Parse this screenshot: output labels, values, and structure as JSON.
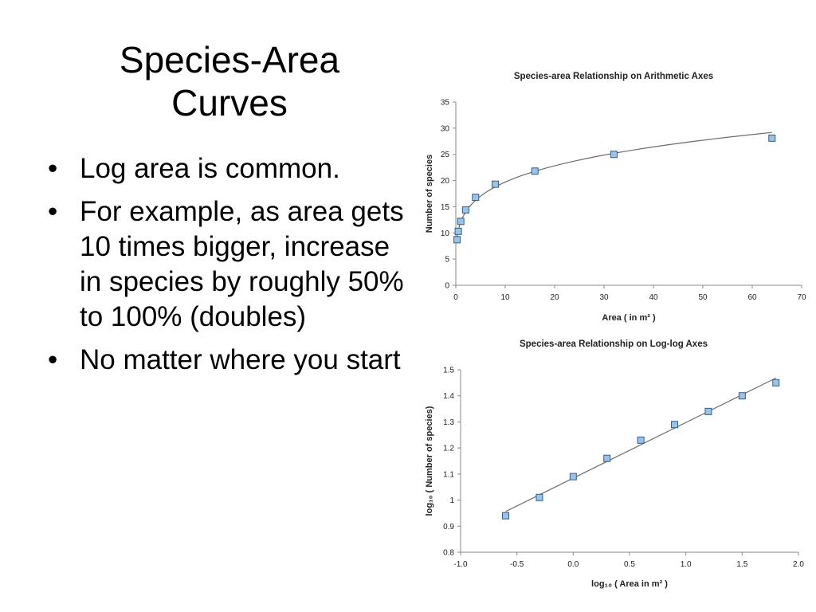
{
  "slide": {
    "title_line1": "Species-Area",
    "title_line2": "Curves",
    "bullets": [
      "Log area is common.",
      "For example, as area gets 10 times bigger, increase in species by roughly 50% to 100% (doubles)",
      "No matter where you start"
    ]
  },
  "chart_data": [
    {
      "type": "scatter",
      "title": "Species-area Relationship on Arithmetic Axes",
      "xlabel": "Area ( in m² )",
      "ylabel": "Number of species",
      "xlim": [
        0,
        70
      ],
      "ylim": [
        0,
        35
      ],
      "xticks": [
        0,
        10,
        20,
        30,
        40,
        50,
        60,
        70
      ],
      "yticks": [
        0,
        5,
        10,
        15,
        20,
        25,
        30,
        35
      ],
      "xtick_labels": [
        "0",
        "10",
        "20",
        "30",
        "40",
        "50",
        "60",
        "70"
      ],
      "ytick_labels": [
        "0",
        "5",
        "10",
        "15",
        "20",
        "25",
        "30",
        "35"
      ],
      "grid": false,
      "fit_line": "power curve",
      "points": [
        {
          "x": 0.25,
          "y": 8.7
        },
        {
          "x": 0.5,
          "y": 10.3
        },
        {
          "x": 1,
          "y": 12.2
        },
        {
          "x": 2,
          "y": 14.4
        },
        {
          "x": 4,
          "y": 16.8
        },
        {
          "x": 8,
          "y": 19.3
        },
        {
          "x": 16,
          "y": 21.8
        },
        {
          "x": 32,
          "y": 25.0
        },
        {
          "x": 64,
          "y": 28.1
        }
      ],
      "marker_color": "#9cc3e6",
      "marker_edge": "#2f5f8a",
      "line_color": "#6b6b6b"
    },
    {
      "type": "scatter",
      "title": "Species-area Relationship on Log-log Axes",
      "xlabel": "log₁₀ ( Area in m² )",
      "ylabel": "log₁₀ ( Number of species)",
      "xlim": [
        -1.0,
        2.0
      ],
      "ylim": [
        0.8,
        1.5
      ],
      "xticks": [
        -1.0,
        -0.5,
        0.0,
        0.5,
        1.0,
        1.5,
        2.0
      ],
      "yticks": [
        0.8,
        0.9,
        1.0,
        1.1,
        1.2,
        1.3,
        1.4,
        1.5
      ],
      "xtick_labels": [
        "-1.0",
        "-0.5",
        "0.0",
        "0.5",
        "1.0",
        "1.5",
        "2.0"
      ],
      "ytick_labels": [
        "0.8",
        "0.9",
        "1",
        "1.1",
        "1.2",
        "1.3",
        "1.4",
        "1.5"
      ],
      "grid": false,
      "fit_line": "linear",
      "points": [
        {
          "x": -0.6,
          "y": 0.94
        },
        {
          "x": -0.3,
          "y": 1.01
        },
        {
          "x": 0.0,
          "y": 1.09
        },
        {
          "x": 0.3,
          "y": 1.16
        },
        {
          "x": 0.6,
          "y": 1.23
        },
        {
          "x": 0.9,
          "y": 1.29
        },
        {
          "x": 1.2,
          "y": 1.34
        },
        {
          "x": 1.5,
          "y": 1.4
        },
        {
          "x": 1.8,
          "y": 1.45
        }
      ],
      "marker_color": "#9cc3e6",
      "marker_edge": "#2f5f8a",
      "line_color": "#6b6b6b"
    }
  ]
}
